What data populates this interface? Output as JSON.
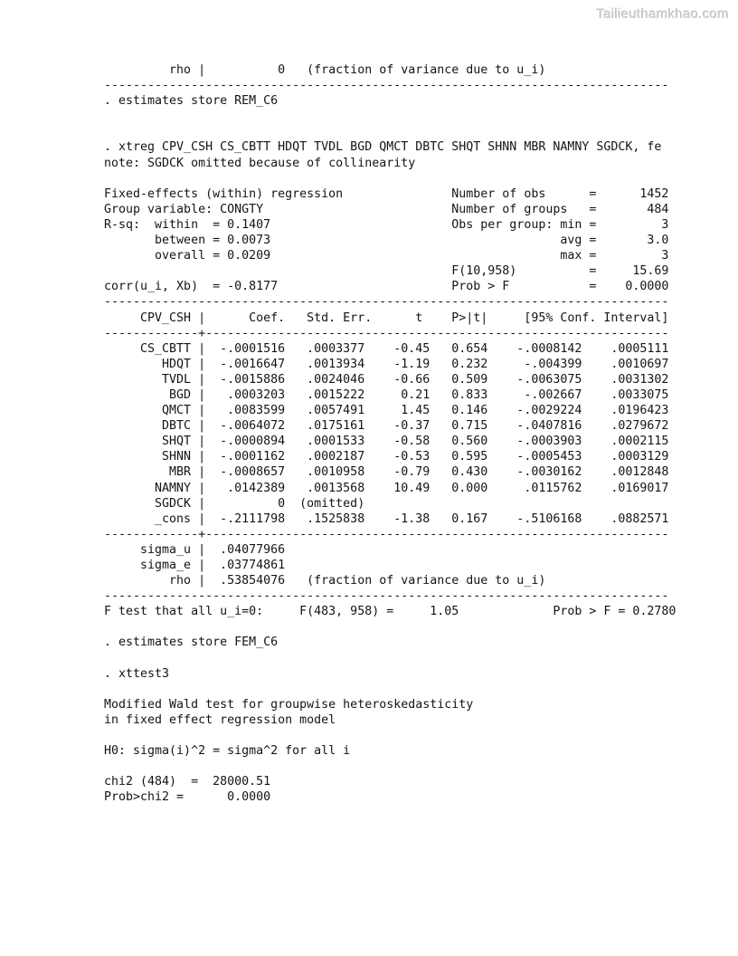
{
  "watermark": "Tailieuthamkhao.com",
  "page": {
    "background_color": "#ffffff",
    "text_color": "#141414",
    "watermark_color": "#c7c7c7"
  },
  "stata_output": {
    "lines": [
      "         rho |          0   (fraction of variance due to u_i)",
      "------------------------------------------------------------------------------",
      ". estimates store REM_C6",
      "",
      "",
      ". xtreg CPV_CSH CS_CBTT HDQT TVDL BGD QMCT DBTC SHQT SHNN MBR NAMNY SGDCK, fe",
      "note: SGDCK omitted because of collinearity",
      "",
      "Fixed-effects (within) regression               Number of obs      =      1452",
      "Group variable: CONGTY                          Number of groups   =       484",
      "R-sq:  within  = 0.1407                         Obs per group: min =         3",
      "       between = 0.0073                                        avg =       3.0",
      "       overall = 0.0209                                        max =         3",
      "                                                F(10,958)          =     15.69",
      "corr(u_i, Xb)  = -0.8177                        Prob > F           =    0.0000",
      "------------------------------------------------------------------------------",
      "     CPV_CSH |      Coef.   Std. Err.      t    P>|t|     [95% Conf. Interval]",
      "-------------+----------------------------------------------------------------",
      "     CS_CBTT |  -.0001516   .0003377    -0.45   0.654    -.0008142    .0005111",
      "        HDQT |  -.0016647   .0013934    -1.19   0.232     -.004399    .0010697",
      "        TVDL |  -.0015886   .0024046    -0.66   0.509    -.0063075    .0031302",
      "         BGD |   .0003203   .0015222     0.21   0.833     -.002667    .0033075",
      "        QMCT |   .0083599   .0057491     1.45   0.146    -.0029224    .0196423",
      "        DBTC |  -.0064072   .0175161    -0.37   0.715    -.0407816    .0279672",
      "        SHQT |  -.0000894   .0001533    -0.58   0.560    -.0003903    .0002115",
      "        SHNN |  -.0001162   .0002187    -0.53   0.595    -.0005453    .0003129",
      "         MBR |  -.0008657   .0010958    -0.79   0.430    -.0030162    .0012848",
      "       NAMNY |   .0142389   .0013568    10.49   0.000     .0115762    .0169017",
      "       SGDCK |          0  (omitted)",
      "       _cons |  -.2111798   .1525838    -1.38   0.167    -.5106168    .0882571",
      "-------------+----------------------------------------------------------------",
      "     sigma_u |  .04077966",
      "     sigma_e |  .03774861",
      "         rho |  .53854076   (fraction of variance due to u_i)",
      "------------------------------------------------------------------------------",
      "F test that all u_i=0:     F(483, 958) =     1.05             Prob > F = 0.2780",
      "",
      ". estimates store FEM_C6",
      "",
      ". xttest3",
      "",
      "Modified Wald test for groupwise heteroskedasticity",
      "in fixed effect regression model",
      "",
      "H0: sigma(i)^2 = sigma^2 for all i",
      "",
      "chi2 (484)  =  28000.51",
      "Prob>chi2 =      0.0000"
    ]
  },
  "commands": [
    ". estimates store REM_C6",
    ". xtreg CPV_CSH CS_CBTT HDQT TVDL BGD QMCT DBTC SHQT SHNN MBR NAMNY SGDCK, fe",
    ". estimates store FEM_C6",
    ". xttest3"
  ],
  "model_stats": {
    "model_title": "Fixed-effects (within) regression",
    "group_variable": "CONGTY",
    "number_of_obs": "1452",
    "number_of_groups": "484",
    "r_sq_within": "0.1407",
    "r_sq_between": "0.0073",
    "r_sq_overall": "0.0209",
    "obs_per_group_min": "3",
    "obs_per_group_avg": "3.0",
    "obs_per_group_max": "3",
    "F_stat_label": "F(10,958)",
    "F_stat_value": "15.69",
    "prob_F": "0.0000",
    "corr_u_i_Xb": "-0.8177",
    "note": "note: SGDCK omitted because of collinearity",
    "sigma_u": ".04077966",
    "sigma_e": ".03774861",
    "rho": ".53854076",
    "rho_note": "(fraction of variance due to u_i)",
    "rem_rho": "0",
    "f_test_line": "F test that all u_i=0:     F(483, 958) =     1.05             Prob > F = 0.2780"
  },
  "regression_table": {
    "dependent_variable": "CPV_CSH",
    "columns": [
      "CPV_CSH",
      "Coef.",
      "Std. Err.",
      "t",
      "P>|t|",
      "[95% Conf. Interval]"
    ],
    "rows": [
      [
        "CS_CBTT",
        "-.0001516",
        ".0003377",
        "-0.45",
        "0.654",
        "-.0008142",
        ".0005111"
      ],
      [
        "HDQT",
        "-.0016647",
        ".0013934",
        "-1.19",
        "0.232",
        "-.004399",
        ".0010697"
      ],
      [
        "TVDL",
        "-.0015886",
        ".0024046",
        "-0.66",
        "0.509",
        "-.0063075",
        ".0031302"
      ],
      [
        "BGD",
        ".0003203",
        ".0015222",
        "0.21",
        "0.833",
        "-.002667",
        ".0033075"
      ],
      [
        "QMCT",
        ".0083599",
        ".0057491",
        "1.45",
        "0.146",
        "-.0029224",
        ".0196423"
      ],
      [
        "DBTC",
        "-.0064072",
        ".0175161",
        "-0.37",
        "0.715",
        "-.0407816",
        ".0279672"
      ],
      [
        "SHQT",
        "-.0000894",
        ".0001533",
        "-0.58",
        "0.560",
        "-.0003903",
        ".0002115"
      ],
      [
        "SHNN",
        "-.0001162",
        ".0002187",
        "-0.53",
        "0.595",
        "-.0005453",
        ".0003129"
      ],
      [
        "MBR",
        "-.0008657",
        ".0010958",
        "-0.79",
        "0.430",
        "-.0030162",
        ".0012848"
      ],
      [
        "NAMNY",
        ".0142389",
        ".0013568",
        "10.49",
        "0.000",
        ".0115762",
        ".0169017"
      ],
      [
        "SGDCK",
        "0",
        "(omitted)",
        "",
        "",
        "",
        ""
      ],
      [
        "_cons",
        "-.2111798",
        ".1525838",
        "-1.38",
        "0.167",
        "-.5106168",
        ".0882571"
      ]
    ]
  },
  "wald_test": {
    "title_line1": "Modified Wald test for groupwise heteroskedasticity",
    "title_line2": "in fixed effect regression model",
    "h0": "H0: sigma(i)^2 = sigma^2 for all i",
    "chi2_label": "chi2 (484)",
    "chi2_value": "28000.51",
    "prob_chi2": "0.0000"
  }
}
